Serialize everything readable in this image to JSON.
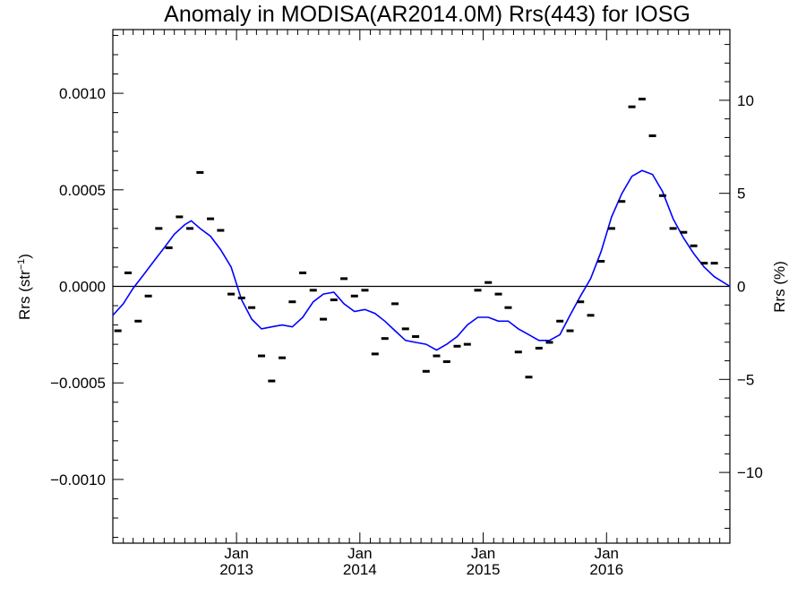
{
  "chart_data": {
    "type": "scatter",
    "title": "Anomaly in MODISA(AR2014.0M) Rrs(443) for IOSG",
    "ylabel_left": "Rrs (str",
    "ylabel_left_sup": "−1",
    "ylabel_left_close": ")",
    "ylabel_right": "Rrs (%)",
    "x_range": [
      "2012-01-01",
      "2016-12-31"
    ],
    "ylim_left": [
      -0.00133,
      0.00133
    ],
    "ylim_right": [
      -13.8,
      13.8
    ],
    "grid": false,
    "zero_line": true,
    "y_ticks_left": [
      {
        "value": 0.001,
        "label": "0.0010"
      },
      {
        "value": 0.0005,
        "label": "0.0005"
      },
      {
        "value": 0.0,
        "label": "0.0000"
      },
      {
        "value": -0.0005,
        "label": "−0.0005"
      },
      {
        "value": -0.001,
        "label": "−0.0010"
      }
    ],
    "y_ticks_right": [
      {
        "value": 10,
        "label": "10"
      },
      {
        "value": 5,
        "label": "5"
      },
      {
        "value": 0,
        "label": "0"
      },
      {
        "value": -5,
        "label": "−5"
      },
      {
        "value": -10,
        "label": "−10"
      }
    ],
    "x_ticks": [
      {
        "date": "2013-01-01",
        "month": "Jan",
        "year": "2013"
      },
      {
        "date": "2014-01-01",
        "month": "Jan",
        "year": "2014"
      },
      {
        "date": "2015-01-01",
        "month": "Jan",
        "year": "2015"
      },
      {
        "date": "2016-01-01",
        "month": "Jan",
        "year": "2016"
      }
    ],
    "series": [
      {
        "kind": "points",
        "color": "#000000",
        "data": [
          [
            "2012-01-16",
            -0.00023
          ],
          [
            "2012-02-15",
            7e-05
          ],
          [
            "2012-03-16",
            -0.00018
          ],
          [
            "2012-04-15",
            -5e-05
          ],
          [
            "2012-05-16",
            0.0003
          ],
          [
            "2012-06-15",
            0.0002
          ],
          [
            "2012-07-16",
            0.00036
          ],
          [
            "2012-08-16",
            0.0003
          ],
          [
            "2012-09-15",
            0.00059
          ],
          [
            "2012-10-16",
            0.00035
          ],
          [
            "2012-11-15",
            0.00029
          ],
          [
            "2012-12-16",
            -4e-05
          ],
          [
            "2013-01-16",
            -6e-05
          ],
          [
            "2013-02-15",
            -0.00011
          ],
          [
            "2013-03-16",
            -0.00036
          ],
          [
            "2013-04-15",
            -0.00049
          ],
          [
            "2013-05-16",
            -0.00037
          ],
          [
            "2013-06-15",
            -8e-05
          ],
          [
            "2013-07-16",
            7e-05
          ],
          [
            "2013-08-16",
            -2e-05
          ],
          [
            "2013-09-15",
            -0.00017
          ],
          [
            "2013-10-16",
            -7e-05
          ],
          [
            "2013-11-15",
            4e-05
          ],
          [
            "2013-12-16",
            -5e-05
          ],
          [
            "2014-01-16",
            -2e-05
          ],
          [
            "2014-02-15",
            -0.00035
          ],
          [
            "2014-03-16",
            -0.00027
          ],
          [
            "2014-04-15",
            -9e-05
          ],
          [
            "2014-05-16",
            -0.00022
          ],
          [
            "2014-06-15",
            -0.00026
          ],
          [
            "2014-07-16",
            -0.00044
          ],
          [
            "2014-08-16",
            -0.00036
          ],
          [
            "2014-09-15",
            -0.00039
          ],
          [
            "2014-10-16",
            -0.00031
          ],
          [
            "2014-11-15",
            -0.0003
          ],
          [
            "2014-12-16",
            -2e-05
          ],
          [
            "2015-01-16",
            2e-05
          ],
          [
            "2015-02-15",
            -4e-05
          ],
          [
            "2015-03-16",
            -0.00011
          ],
          [
            "2015-04-15",
            -0.00034
          ],
          [
            "2015-05-16",
            -0.00047
          ],
          [
            "2015-06-15",
            -0.00032
          ],
          [
            "2015-07-16",
            -0.00029
          ],
          [
            "2015-08-16",
            -0.00018
          ],
          [
            "2015-09-15",
            -0.00023
          ],
          [
            "2015-10-16",
            -8e-05
          ],
          [
            "2015-11-15",
            -0.00015
          ],
          [
            "2015-12-16",
            0.00013
          ],
          [
            "2016-01-16",
            0.0003
          ],
          [
            "2016-02-15",
            0.00044
          ],
          [
            "2016-03-16",
            0.00093
          ],
          [
            "2016-04-15",
            0.00097
          ],
          [
            "2016-05-16",
            0.00078
          ],
          [
            "2016-06-15",
            0.00047
          ],
          [
            "2016-07-16",
            0.0003
          ],
          [
            "2016-08-16",
            0.00028
          ],
          [
            "2016-09-15",
            0.00021
          ],
          [
            "2016-10-16",
            0.00012
          ],
          [
            "2016-11-15",
            0.00012
          ]
        ]
      },
      {
        "kind": "line",
        "color": "#0000ff",
        "data": [
          [
            "2012-01-01",
            -0.00015
          ],
          [
            "2012-02-01",
            -9e-05
          ],
          [
            "2012-03-01",
            -1e-05
          ],
          [
            "2012-04-01",
            6e-05
          ],
          [
            "2012-05-01",
            0.00013
          ],
          [
            "2012-06-01",
            0.0002
          ],
          [
            "2012-07-01",
            0.00027
          ],
          [
            "2012-08-01",
            0.00032
          ],
          [
            "2012-08-20",
            0.00034
          ],
          [
            "2012-09-15",
            0.0003
          ],
          [
            "2012-10-16",
            0.00026
          ],
          [
            "2012-11-15",
            0.00019
          ],
          [
            "2012-12-16",
            0.0001
          ],
          [
            "2013-01-16",
            -7e-05
          ],
          [
            "2013-02-15",
            -0.00017
          ],
          [
            "2013-03-16",
            -0.00022
          ],
          [
            "2013-04-15",
            -0.00021
          ],
          [
            "2013-05-16",
            -0.0002
          ],
          [
            "2013-06-15",
            -0.00021
          ],
          [
            "2013-07-16",
            -0.00016
          ],
          [
            "2013-08-16",
            -8e-05
          ],
          [
            "2013-09-15",
            -4e-05
          ],
          [
            "2013-10-16",
            -3e-05
          ],
          [
            "2013-11-15",
            -9e-05
          ],
          [
            "2013-12-16",
            -0.00013
          ],
          [
            "2014-01-16",
            -0.00012
          ],
          [
            "2014-02-15",
            -0.00014
          ],
          [
            "2014-03-16",
            -0.00018
          ],
          [
            "2014-04-15",
            -0.00023
          ],
          [
            "2014-05-16",
            -0.00028
          ],
          [
            "2014-06-15",
            -0.00029
          ],
          [
            "2014-07-16",
            -0.0003
          ],
          [
            "2014-08-16",
            -0.00033
          ],
          [
            "2014-09-15",
            -0.0003
          ],
          [
            "2014-10-16",
            -0.00026
          ],
          [
            "2014-11-15",
            -0.0002
          ],
          [
            "2014-12-16",
            -0.00016
          ],
          [
            "2015-01-16",
            -0.00016
          ],
          [
            "2015-02-15",
            -0.00018
          ],
          [
            "2015-03-16",
            -0.00018
          ],
          [
            "2015-04-15",
            -0.00022
          ],
          [
            "2015-05-16",
            -0.00025
          ],
          [
            "2015-06-15",
            -0.00028
          ],
          [
            "2015-07-16",
            -0.00028
          ],
          [
            "2015-08-16",
            -0.00025
          ],
          [
            "2015-09-15",
            -0.00015
          ],
          [
            "2015-10-16",
            -5e-05
          ],
          [
            "2015-11-15",
            4e-05
          ],
          [
            "2015-12-16",
            0.00018
          ],
          [
            "2016-01-16",
            0.00036
          ],
          [
            "2016-02-15",
            0.00048
          ],
          [
            "2016-03-16",
            0.00057
          ],
          [
            "2016-04-15",
            0.0006
          ],
          [
            "2016-05-16",
            0.00058
          ],
          [
            "2016-06-15",
            0.00049
          ],
          [
            "2016-07-16",
            0.00035
          ],
          [
            "2016-08-16",
            0.00025
          ],
          [
            "2016-09-15",
            0.00017
          ],
          [
            "2016-10-16",
            0.0001
          ],
          [
            "2016-11-15",
            5e-05
          ],
          [
            "2016-12-31",
            0.0
          ]
        ]
      }
    ]
  }
}
